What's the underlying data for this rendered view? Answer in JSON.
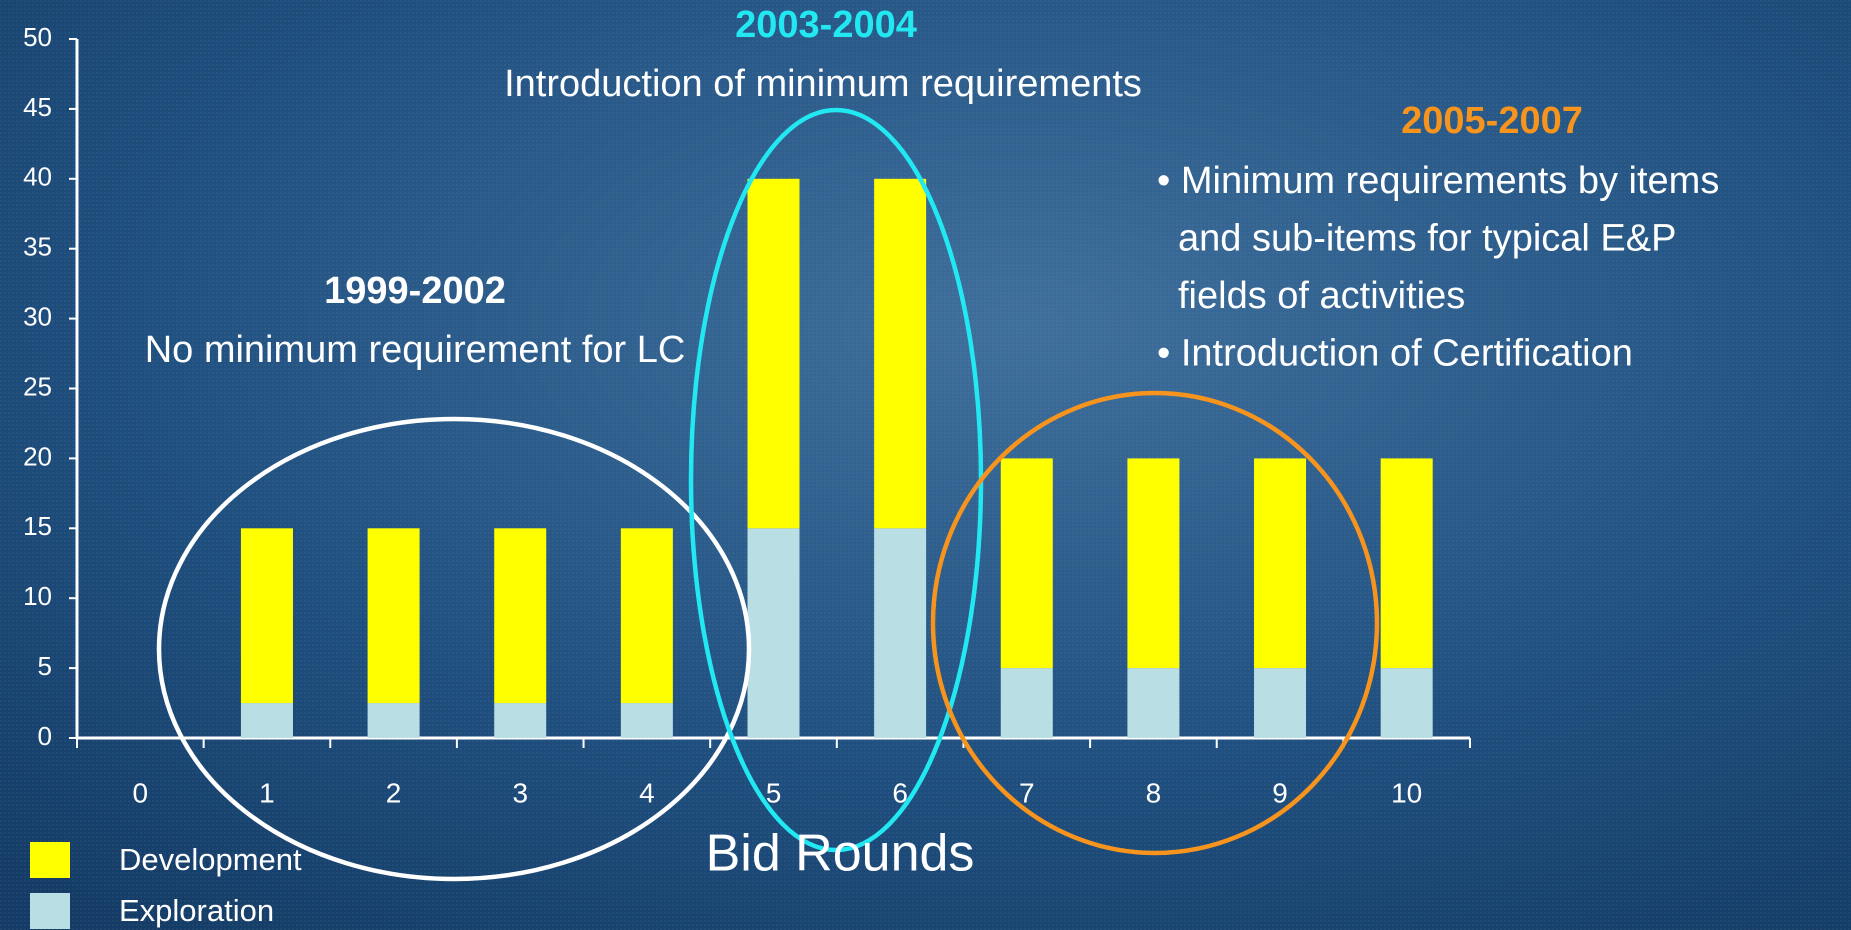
{
  "chart_data": {
    "type": "stacked_bar",
    "x_label": "Bid Rounds",
    "categories": [
      "0",
      "1",
      "2",
      "3",
      "4",
      "5",
      "6",
      "7",
      "8",
      "9",
      "10"
    ],
    "series": [
      {
        "name": "Exploration",
        "color": "#b9dfe4",
        "values": [
          null,
          2.5,
          2.5,
          2.5,
          2.5,
          15,
          15,
          5,
          5,
          5,
          5
        ]
      },
      {
        "name": "Development",
        "color": "#ffff00",
        "values": [
          null,
          12.5,
          12.5,
          12.5,
          12.5,
          25,
          25,
          15,
          15,
          15,
          15
        ]
      }
    ],
    "ylim": [
      0,
      50
    ],
    "yticks": [
      0,
      5,
      10,
      15,
      20,
      25,
      30,
      35,
      40,
      45,
      50
    ],
    "grid": false,
    "legend": "bottom-left",
    "annotations": [
      {
        "title": "1999-2002",
        "color": "#ffffff",
        "lines": [
          "No minimum requirement for LC"
        ]
      },
      {
        "title": "2003-2004",
        "color": "#22e8f2",
        "lines": [
          "Introduction of minimum requirements"
        ]
      },
      {
        "title": "2005-2007",
        "color": "#f7941d",
        "lines": [
          "• Minimum requirements by items",
          "and sub-items for typical E&P",
          "fields of activities",
          "• Introduction of Certification"
        ]
      }
    ]
  }
}
